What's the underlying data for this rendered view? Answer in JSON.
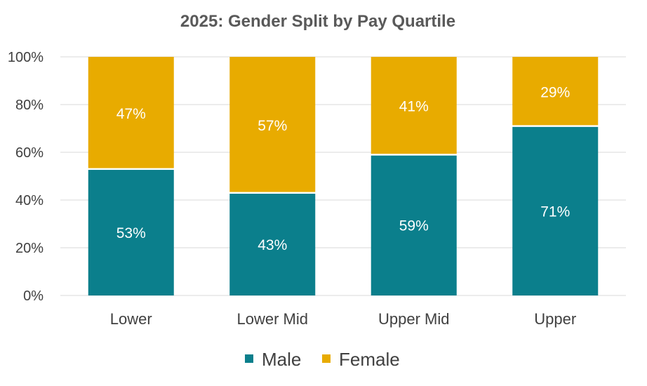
{
  "chart_data": {
    "type": "bar",
    "stacked": true,
    "title": "2025: Gender Split by Pay Quartile",
    "categories": [
      "Lower",
      "Lower Mid",
      "Upper Mid",
      "Upper"
    ],
    "series": [
      {
        "name": "Male",
        "color": "#0b7f8c",
        "values": [
          53,
          43,
          59,
          71
        ],
        "labels": [
          "53%",
          "43%",
          "59%",
          "71%"
        ]
      },
      {
        "name": "Female",
        "color": "#e8ab00",
        "values": [
          47,
          57,
          41,
          29
        ],
        "labels": [
          "47%",
          "57%",
          "41%",
          "29%"
        ]
      }
    ],
    "yticks": [
      "0%",
      "20%",
      "40%",
      "60%",
      "80%",
      "100%"
    ],
    "ylim": [
      0,
      100
    ],
    "xlabel": "",
    "ylabel": "",
    "grid": true,
    "legend": "bottom"
  }
}
